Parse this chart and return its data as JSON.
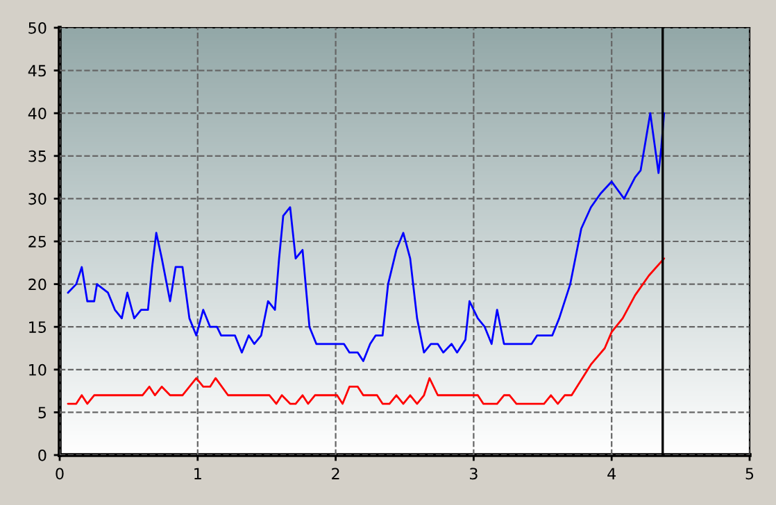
{
  "chart_data": {
    "type": "line",
    "xlim": [
      0,
      5
    ],
    "ylim": [
      0,
      50
    ],
    "xticks": [
      0,
      1,
      2,
      3,
      4,
      5
    ],
    "yticks": [
      0,
      5,
      10,
      15,
      20,
      25,
      30,
      35,
      40,
      45,
      50
    ],
    "grid": true,
    "line_style": "solid",
    "marker": "none",
    "series": [
      {
        "color": "#0000ff",
        "x": [
          0.06,
          0.12,
          0.16,
          0.2,
          0.25,
          0.27,
          0.35,
          0.4,
          0.45,
          0.49,
          0.54,
          0.59,
          0.64,
          0.67,
          0.7,
          0.74,
          0.8,
          0.84,
          0.89,
          0.94,
          0.99,
          1.04,
          1.09,
          1.14,
          1.17,
          1.27,
          1.32,
          1.37,
          1.41,
          1.46,
          1.51,
          1.56,
          1.59,
          1.62,
          1.67,
          1.71,
          1.76,
          1.81,
          1.86,
          1.97,
          2.06,
          2.1,
          2.16,
          2.2,
          2.25,
          2.29,
          2.34,
          2.38,
          2.44,
          2.49,
          2.54,
          2.59,
          2.64,
          2.69,
          2.74,
          2.78,
          2.84,
          2.88,
          2.94,
          2.97,
          3.03,
          3.08,
          3.13,
          3.17,
          3.22,
          3.42,
          3.46,
          3.57,
          3.62,
          3.7,
          3.78,
          3.85,
          3.92,
          4.0,
          4.09,
          4.17,
          4.21,
          4.28,
          4.31,
          4.34,
          4.36,
          4.38
        ],
        "values": [
          19,
          20,
          22,
          18,
          18,
          20,
          19,
          17,
          16,
          19,
          16,
          17,
          17,
          22,
          26,
          23,
          18,
          22,
          22,
          16,
          14,
          17,
          15,
          15,
          14,
          14,
          12,
          14,
          13,
          14,
          18,
          17,
          23,
          28,
          29,
          23,
          24,
          15,
          13,
          13,
          13,
          12,
          12,
          11,
          13,
          14,
          14,
          20,
          24,
          26,
          23,
          16,
          12,
          13,
          13,
          12,
          13,
          12,
          13.5,
          18,
          16,
          15,
          13,
          17,
          13,
          13,
          14,
          14,
          16,
          20,
          26.5,
          29,
          30.6,
          32,
          30,
          32.5,
          33.3,
          40,
          36.5,
          33,
          36,
          40
        ]
      },
      {
        "color": "#ff0000",
        "x": [
          0.06,
          0.12,
          0.16,
          0.2,
          0.25,
          0.6,
          0.65,
          0.69,
          0.74,
          0.8,
          0.89,
          0.99,
          1.04,
          1.09,
          1.13,
          1.22,
          1.52,
          1.57,
          1.61,
          1.67,
          1.71,
          1.76,
          1.8,
          1.85,
          1.97,
          2.01,
          2.05,
          2.1,
          2.16,
          2.2,
          2.3,
          2.34,
          2.39,
          2.44,
          2.49,
          2.54,
          2.59,
          2.64,
          2.68,
          2.74,
          3.03,
          3.07,
          3.17,
          3.22,
          3.26,
          3.31,
          3.51,
          3.56,
          3.61,
          3.66,
          3.71,
          3.85,
          3.95,
          4.0,
          4.08,
          4.17,
          4.27,
          4.38
        ],
        "values": [
          6,
          6,
          7,
          6,
          7,
          7,
          8,
          7,
          8,
          7,
          7,
          9,
          8,
          8,
          9,
          7,
          7,
          6,
          7,
          6,
          6,
          7,
          6,
          7,
          7,
          7,
          6,
          8,
          8,
          7,
          7,
          6,
          6,
          7,
          6,
          7,
          6,
          7,
          9,
          7,
          7,
          6,
          6,
          7,
          7,
          6,
          6,
          7,
          6,
          7,
          7,
          10.6,
          12.5,
          14.4,
          16,
          18.7,
          21,
          23
        ]
      }
    ],
    "ref_lines": [
      {
        "axis": "x",
        "value": 4.37,
        "color": "#000000",
        "line_style": "solid"
      }
    ]
  }
}
